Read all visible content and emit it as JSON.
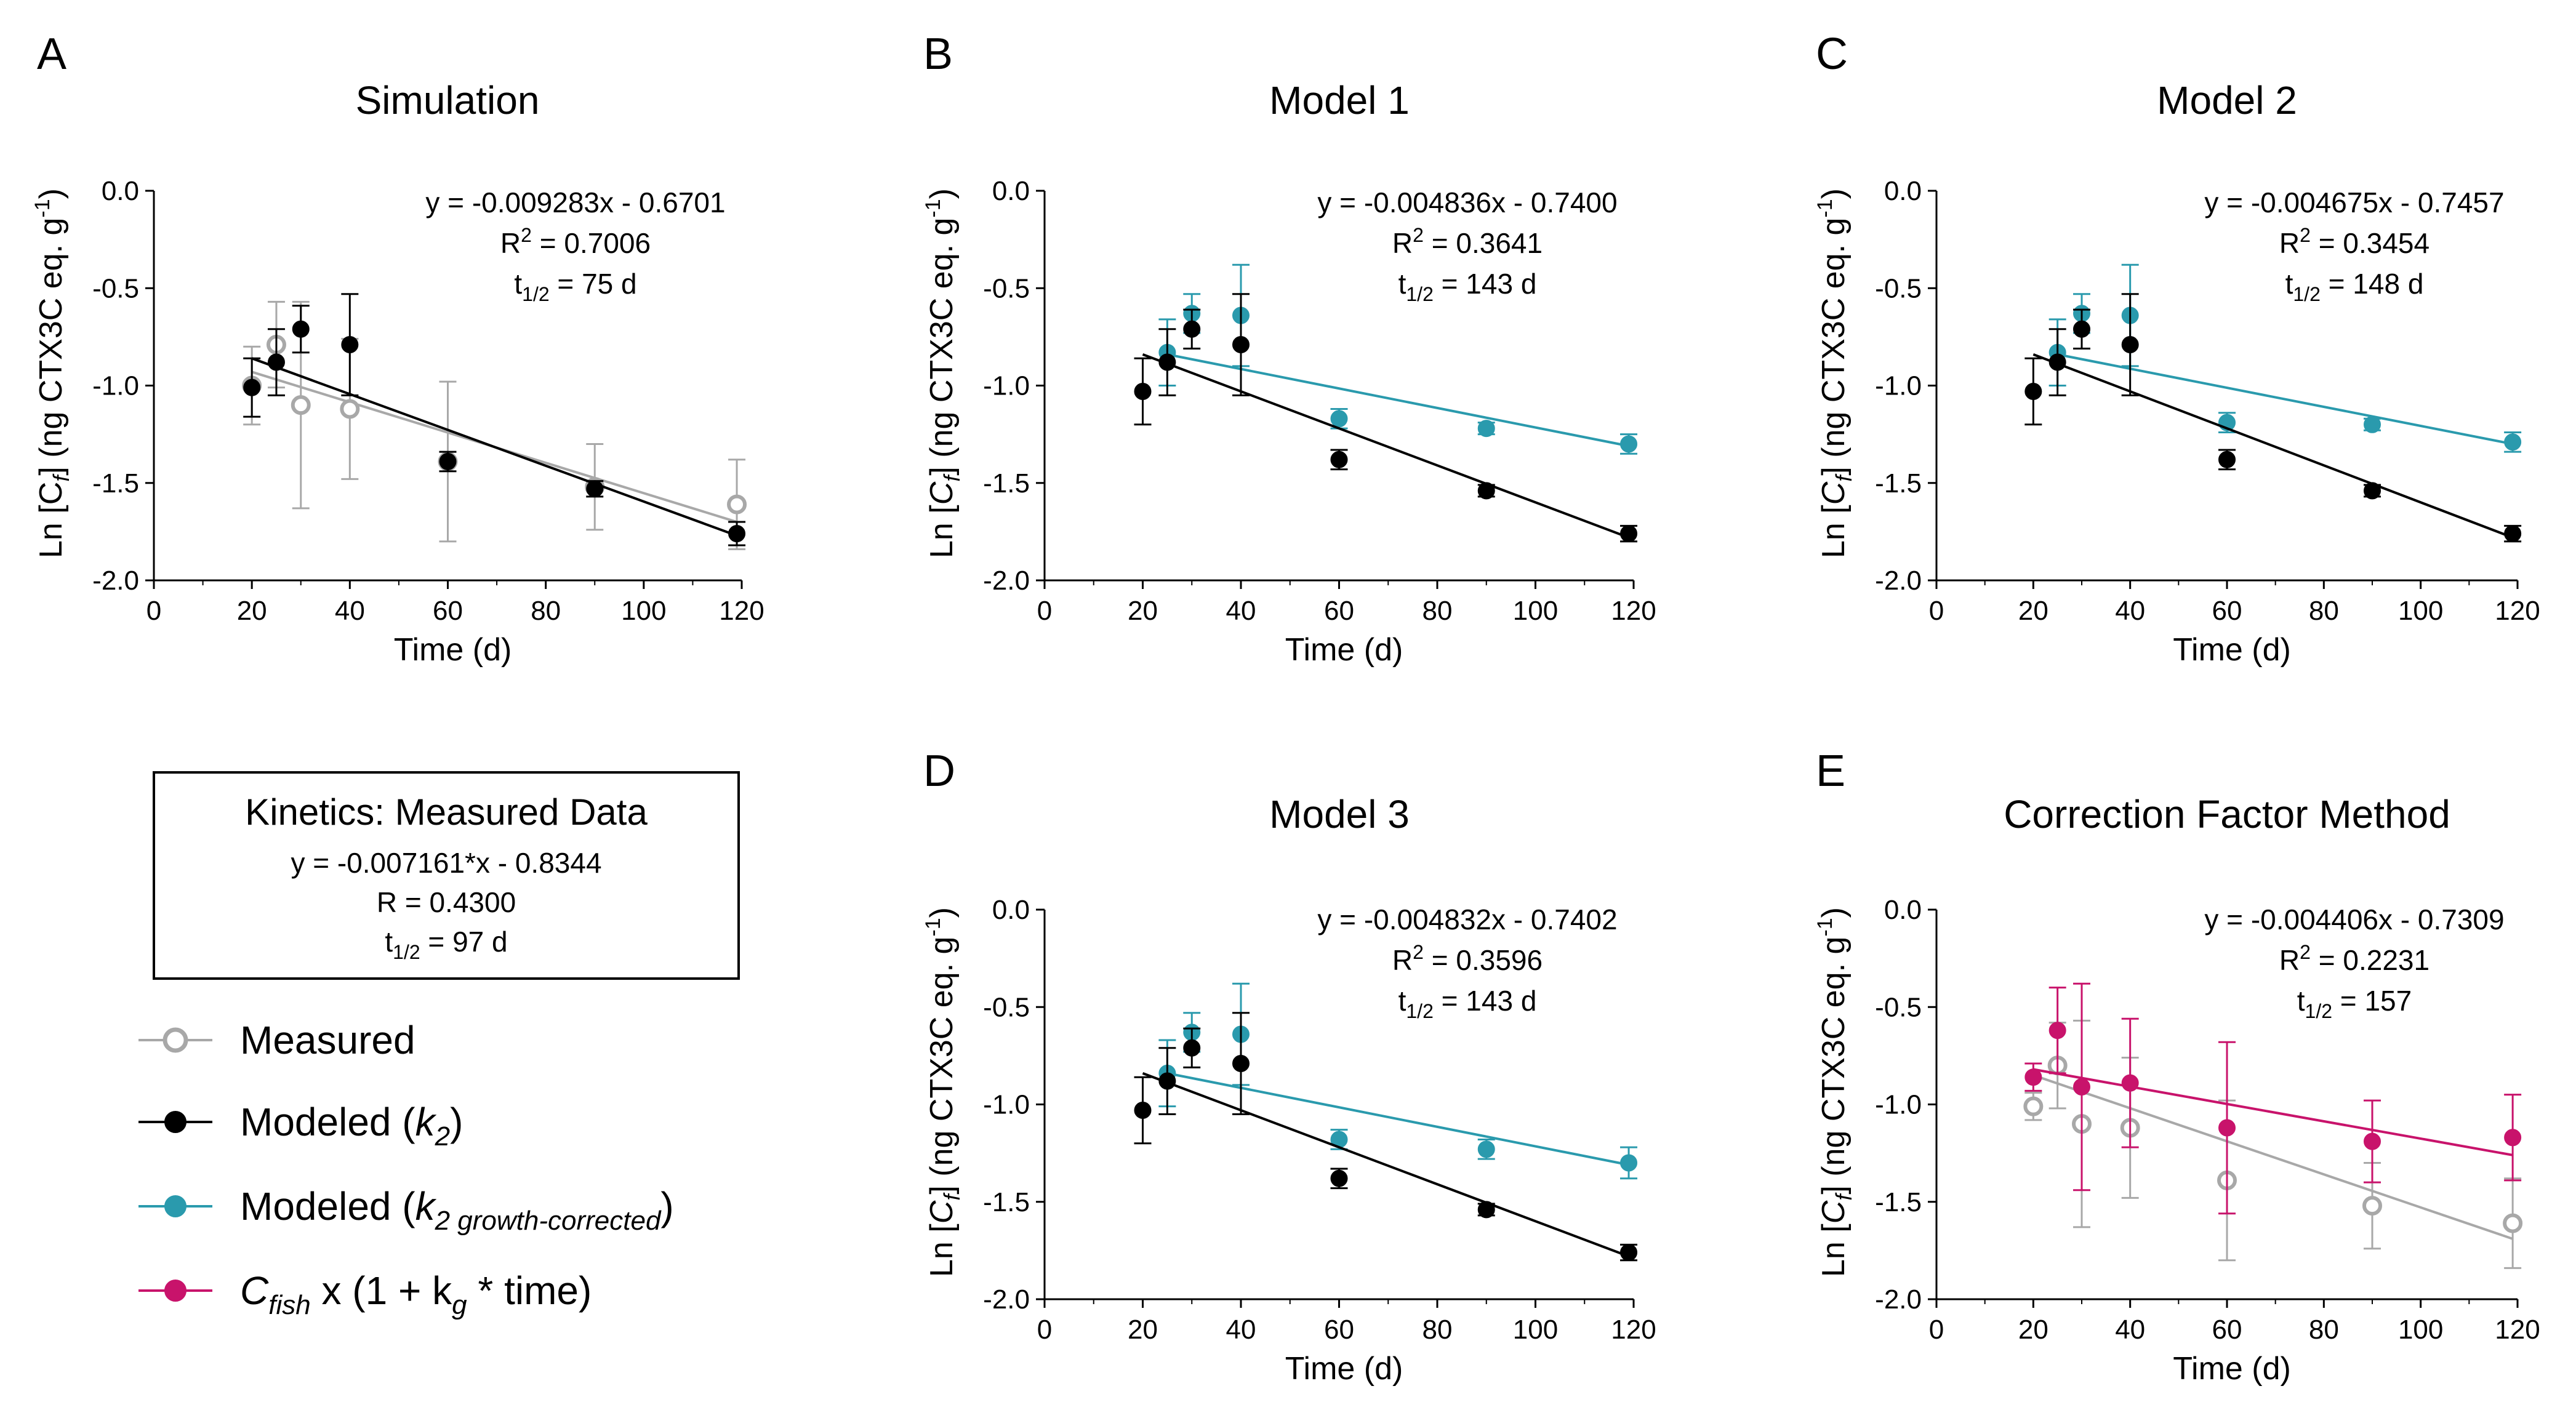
{
  "figure": {
    "axis": {
      "ylabel_prefix": "Ln",
      "ylabel_sub": "f",
      "ylabel_unit": "(ng CTX3C eq. g",
      "ylabel_exp": "-1",
      "ylabel_close": ")",
      "xlabel": "Time (d)",
      "x_ticks": [
        "0",
        "20",
        "40",
        "60",
        "80",
        "100",
        "120"
      ],
      "y_ticks": [
        "0.0",
        "-0.5",
        "-1.0",
        "-1.5",
        "-2.0"
      ]
    },
    "labels": {
      "r2_prefix": "R",
      "r2_exp": "2",
      "half_prefix": "t",
      "half_sub": "1/2"
    },
    "colors": {
      "measured": "#a8a8a8",
      "modeled_k2": "#000000",
      "growth_corrected": "#2a9aad",
      "cfish": "#c8136b"
    },
    "summary_box": {
      "title": "Kinetics: Measured Data",
      "equation": "y = -0.007161*x - 0.8344",
      "r": "R = 0.4300",
      "half_prefix": "t",
      "half_sub": "1/2",
      "half_value": " = 97 d"
    },
    "legend": [
      {
        "key": "measured",
        "text": "Measured",
        "marker": "open"
      },
      {
        "key": "modeled_k2",
        "text": "Modeled (",
        "italic": "k",
        "sub": "2",
        "tail": ")",
        "marker": "filled"
      },
      {
        "key": "growth_corrected",
        "text": "Modeled (",
        "italic": "k",
        "sub": "2 growth-corrected",
        "tail": ")",
        "marker": "filled"
      },
      {
        "key": "cfish",
        "text": "",
        "italic": "C",
        "sub": "fish",
        "tail": " x (1 + k",
        "tail_sub": "g",
        "tail2": " * time)",
        "marker": "filled"
      }
    ]
  },
  "chart_data": [
    {
      "id": "A",
      "letter": "A",
      "type": "scatter",
      "title": "Simulation",
      "ylabel_var": "C",
      "ylabel_var_italic": false,
      "xlim": [
        0,
        120
      ],
      "ylim": [
        -2.0,
        0.0
      ],
      "equation": "y = -0.009283x - 0.6701",
      "r2_value": " = 0.7006",
      "half_value": " = 75 d",
      "series": [
        {
          "key": "measured",
          "marker": "open",
          "x": [
            20,
            25,
            30,
            40,
            60,
            90,
            119
          ],
          "y": [
            -1.0,
            -0.79,
            -1.1,
            -1.12,
            -1.39,
            -1.52,
            -1.61
          ],
          "err": [
            0.2,
            0.22,
            0.53,
            0.36,
            0.41,
            0.22,
            0.23
          ],
          "fit": [
            -0.93,
            -1.7
          ]
        },
        {
          "key": "modeled_k2",
          "marker": "filled",
          "x": [
            20,
            25,
            30,
            40,
            60,
            90,
            119
          ],
          "y": [
            -1.01,
            -0.88,
            -0.71,
            -0.79,
            -1.39,
            -1.53,
            -1.76
          ],
          "err": [
            0.15,
            0.17,
            0.12,
            0.26,
            0.05,
            0.04,
            0.06
          ],
          "fit": [
            -0.86,
            -1.77
          ]
        }
      ]
    },
    {
      "id": "B",
      "letter": "B",
      "type": "scatter",
      "title": "Model 1",
      "ylabel_var": "C",
      "ylabel_var_italic": true,
      "xlim": [
        0,
        120
      ],
      "ylim": [
        -2.0,
        0.0
      ],
      "equation": "y = -0.004836x - 0.7400",
      "r2_value": " = 0.3641",
      "half_value": " = 143 d",
      "series": [
        {
          "key": "growth_corrected",
          "marker": "filled",
          "x": [
            25,
            30,
            40,
            60,
            90,
            119
          ],
          "y": [
            -0.83,
            -0.63,
            -0.64,
            -1.17,
            -1.22,
            -1.3
          ],
          "err": [
            0.17,
            0.1,
            0.26,
            0.05,
            0.03,
            0.05
          ],
          "fit": [
            -0.84,
            -1.31
          ]
        },
        {
          "key": "modeled_k2",
          "marker": "filled",
          "x": [
            20,
            25,
            30,
            40,
            60,
            90,
            119
          ],
          "y": [
            -1.03,
            -0.88,
            -0.71,
            -0.79,
            -1.38,
            -1.54,
            -1.76
          ],
          "err": [
            0.17,
            0.17,
            0.1,
            0.26,
            0.05,
            0.03,
            0.04
          ],
          "fit": [
            -0.84,
            -1.78
          ]
        }
      ]
    },
    {
      "id": "C",
      "letter": "C",
      "type": "scatter",
      "title": "Model 2",
      "ylabel_var": "C",
      "ylabel_var_italic": true,
      "xlim": [
        0,
        120
      ],
      "ylim": [
        -2.0,
        0.0
      ],
      "equation": "y = -0.004675x - 0.7457",
      "r2_value": " = 0.3454",
      "half_value": " = 148 d",
      "series": [
        {
          "key": "growth_corrected",
          "marker": "filled",
          "x": [
            25,
            30,
            40,
            60,
            90,
            119
          ],
          "y": [
            -0.83,
            -0.63,
            -0.64,
            -1.19,
            -1.2,
            -1.29
          ],
          "err": [
            0.17,
            0.1,
            0.26,
            0.05,
            0.03,
            0.05
          ],
          "fit": [
            -0.84,
            -1.3
          ]
        },
        {
          "key": "modeled_k2",
          "marker": "filled",
          "x": [
            20,
            25,
            30,
            40,
            60,
            90,
            119
          ],
          "y": [
            -1.03,
            -0.88,
            -0.71,
            -0.79,
            -1.38,
            -1.54,
            -1.76
          ],
          "err": [
            0.17,
            0.17,
            0.1,
            0.26,
            0.05,
            0.03,
            0.04
          ],
          "fit": [
            -0.84,
            -1.78
          ]
        }
      ]
    },
    {
      "id": "D",
      "letter": "D",
      "type": "scatter",
      "title": "Model 3",
      "ylabel_var": "C",
      "ylabel_var_italic": true,
      "xlim": [
        0,
        120
      ],
      "ylim": [
        -2.0,
        0.0
      ],
      "equation": "y = -0.004832x - 0.7402",
      "r2_value": " = 0.3596",
      "half_value": " = 143 d",
      "series": [
        {
          "key": "growth_corrected",
          "marker": "filled",
          "x": [
            25,
            30,
            40,
            60,
            90,
            119
          ],
          "y": [
            -0.84,
            -0.63,
            -0.64,
            -1.18,
            -1.23,
            -1.3
          ],
          "err": [
            0.17,
            0.1,
            0.26,
            0.05,
            0.05,
            0.08
          ],
          "fit": [
            -0.84,
            -1.31
          ]
        },
        {
          "key": "modeled_k2",
          "marker": "filled",
          "x": [
            20,
            25,
            30,
            40,
            60,
            90,
            119
          ],
          "y": [
            -1.03,
            -0.88,
            -0.71,
            -0.79,
            -1.38,
            -1.54,
            -1.76
          ],
          "err": [
            0.17,
            0.17,
            0.1,
            0.26,
            0.05,
            0.03,
            0.04
          ],
          "fit": [
            -0.84,
            -1.78
          ]
        }
      ]
    },
    {
      "id": "E",
      "letter": "E",
      "type": "scatter",
      "title": "Correction Factor Method",
      "ylabel_var": "C",
      "ylabel_var_italic": true,
      "xlim": [
        0,
        120
      ],
      "ylim": [
        -2.0,
        0.0
      ],
      "equation": "y = -0.004406x - 0.7309",
      "r2_value": " = 0.2231",
      "half_value": " = 157",
      "series": [
        {
          "key": "measured",
          "marker": "open",
          "x": [
            20,
            25,
            30,
            40,
            60,
            90,
            119
          ],
          "y": [
            -1.01,
            -0.8,
            -1.1,
            -1.12,
            -1.39,
            -1.52,
            -1.61
          ],
          "err": [
            0.07,
            0.22,
            0.53,
            0.36,
            0.41,
            0.22,
            0.23
          ],
          "fit": [
            -0.85,
            -1.69
          ]
        },
        {
          "key": "cfish",
          "marker": "filled",
          "x": [
            20,
            25,
            30,
            40,
            60,
            90,
            119
          ],
          "y": [
            -0.86,
            -0.62,
            -0.91,
            -0.89,
            -1.12,
            -1.19,
            -1.17
          ],
          "err": [
            0.07,
            0.22,
            0.53,
            0.33,
            0.44,
            0.21,
            0.22
          ],
          "fit": [
            -0.82,
            -1.26
          ]
        }
      ]
    }
  ]
}
